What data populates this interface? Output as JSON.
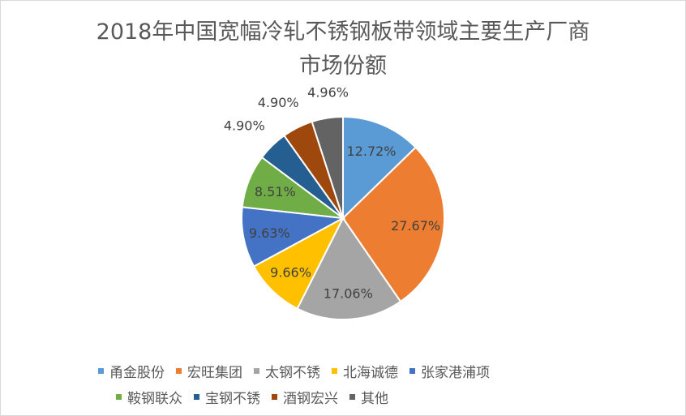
{
  "chart_data": {
    "type": "pie",
    "title_lines": [
      "2018年中国宽幅冷轧不锈钢板带领域主要生产厂商",
      "市场份额"
    ],
    "legend_position": "bottom",
    "data_labels": "percent",
    "categories": [
      "甬金股份",
      "宏旺集团",
      "太钢不锈",
      "北海诚德",
      "张家港浦项",
      "鞍钢联众",
      "宝钢不锈",
      "酒钢宏兴",
      "其他"
    ],
    "values": [
      12.72,
      27.67,
      17.06,
      9.66,
      9.63,
      8.51,
      4.9,
      4.9,
      4.96
    ],
    "value_labels": [
      "12.72%",
      "27.67%",
      "17.06%",
      "9.66%",
      "9.63%",
      "8.51%",
      "4.90%",
      "4.90%",
      "4.96%"
    ],
    "colors": [
      "#5B9BD5",
      "#ED7D31",
      "#A5A5A5",
      "#FFC000",
      "#4472C4",
      "#70AD47",
      "#255E91",
      "#9E480E",
      "#636363"
    ],
    "label_colors": [
      "#404040",
      "#404040",
      "#404040",
      "#404040",
      "#404040",
      "#404040",
      "#404040",
      "#404040",
      "#404040"
    ]
  }
}
